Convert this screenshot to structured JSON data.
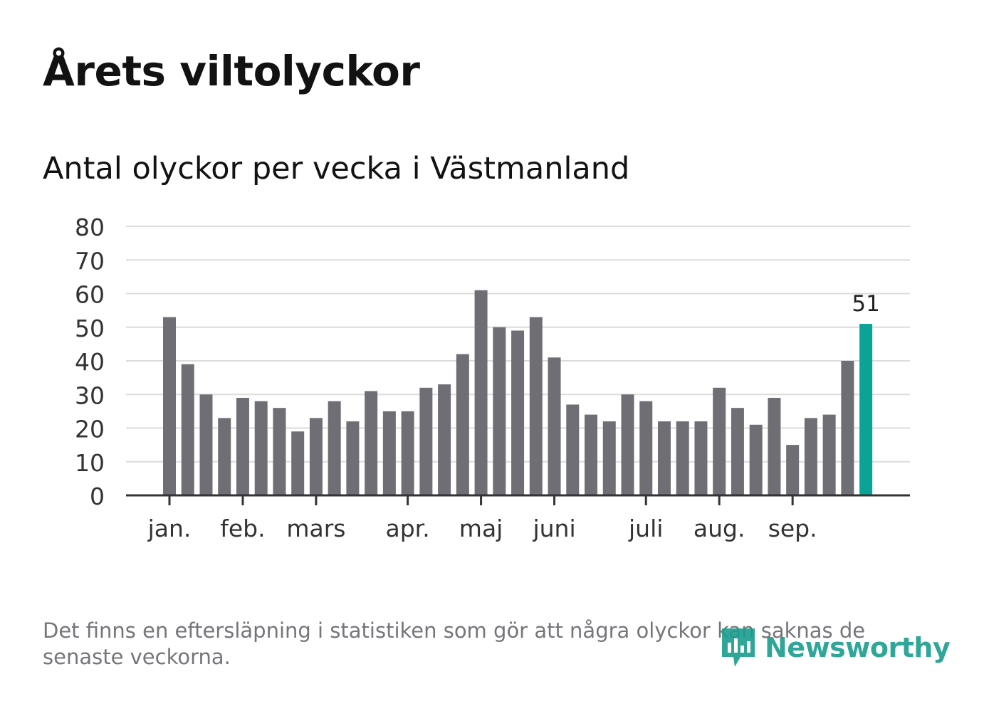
{
  "header": {
    "title": "Årets viltolyckor",
    "subtitle": "Antal olyckor per vecka i Västmanland"
  },
  "chart_data": {
    "type": "bar",
    "title": "Antal olyckor per vecka i Västmanland",
    "xlabel": "",
    "ylabel": "",
    "ylim": [
      0,
      80
    ],
    "yticks": [
      0,
      10,
      20,
      30,
      40,
      50,
      60,
      70,
      80
    ],
    "grid": true,
    "weeks": [
      1,
      2,
      3,
      4,
      5,
      6,
      7,
      8,
      9,
      10,
      11,
      12,
      13,
      14,
      15,
      16,
      17,
      18,
      19,
      20,
      21,
      22,
      23,
      24,
      25,
      26,
      27,
      28,
      29,
      30,
      31,
      32,
      33,
      34,
      35,
      36,
      37,
      38,
      39
    ],
    "values": [
      53,
      39,
      30,
      23,
      29,
      28,
      26,
      19,
      23,
      28,
      22,
      31,
      25,
      25,
      32,
      33,
      42,
      61,
      50,
      49,
      53,
      41,
      27,
      24,
      22,
      30,
      28,
      22,
      22,
      22,
      32,
      26,
      21,
      29,
      15,
      23,
      24,
      40,
      51
    ],
    "month_ticks": [
      {
        "label": "jan.",
        "week_index": 0
      },
      {
        "label": "feb.",
        "week_index": 4
      },
      {
        "label": "mars",
        "week_index": 8
      },
      {
        "label": "apr.",
        "week_index": 13
      },
      {
        "label": "maj",
        "week_index": 17
      },
      {
        "label": "juni",
        "week_index": 21
      },
      {
        "label": "juli",
        "week_index": 26
      },
      {
        "label": "aug.",
        "week_index": 30
      },
      {
        "label": "sep.",
        "week_index": 34
      }
    ],
    "highlight": {
      "week_index": 38,
      "label": "51"
    },
    "colors": {
      "bar": "#6f6e74",
      "highlight": "#0aa496",
      "grid": "#dcdcdc",
      "axis": "#333333",
      "text": "#333333"
    }
  },
  "footer": {
    "note": "Det finns en eftersläpning i statistiken som gör att några olyckor kan saknas de senaste veckorna.",
    "logo_text": "Newsworthy",
    "logo_color": "#1a9d8f"
  }
}
